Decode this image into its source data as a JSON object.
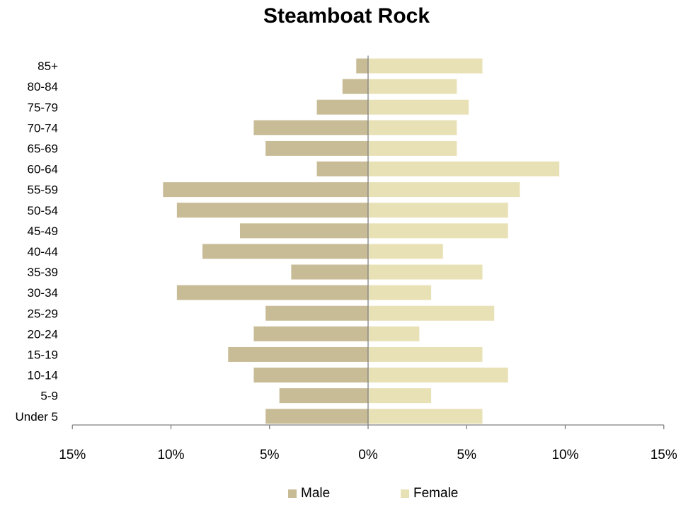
{
  "chart_data": {
    "type": "bar",
    "orientation": "horizontal",
    "title": "Steamboat Rock",
    "categories": [
      "Under 5",
      "5-9",
      "10-14",
      "15-19",
      "20-24",
      "25-29",
      "30-34",
      "35-39",
      "40-44",
      "45-49",
      "50-54",
      "55-59",
      "60-64",
      "65-69",
      "70-74",
      "75-79",
      "80-84",
      "85+"
    ],
    "series": [
      {
        "name": "Male",
        "color": "#c8bc96",
        "values": [
          5.2,
          4.5,
          5.8,
          7.1,
          5.8,
          5.2,
          9.7,
          3.9,
          8.4,
          6.5,
          9.7,
          10.4,
          2.6,
          5.2,
          5.8,
          2.6,
          1.3,
          0.6
        ]
      },
      {
        "name": "Female",
        "color": "#e9e1b6",
        "values": [
          5.8,
          3.2,
          7.1,
          5.8,
          2.6,
          6.4,
          3.2,
          5.8,
          3.8,
          7.1,
          7.1,
          7.7,
          9.7,
          4.5,
          4.5,
          5.1,
          4.5,
          5.8
        ]
      }
    ],
    "xlim": [
      -15,
      15
    ],
    "x_ticks": [
      -15,
      -10,
      -5,
      0,
      5,
      10,
      15
    ],
    "x_tick_labels": [
      "15%",
      "10%",
      "5%",
      "0%",
      "5%",
      "10%",
      "15%"
    ],
    "unit": "%",
    "legend_position": "bottom",
    "grid": false
  }
}
